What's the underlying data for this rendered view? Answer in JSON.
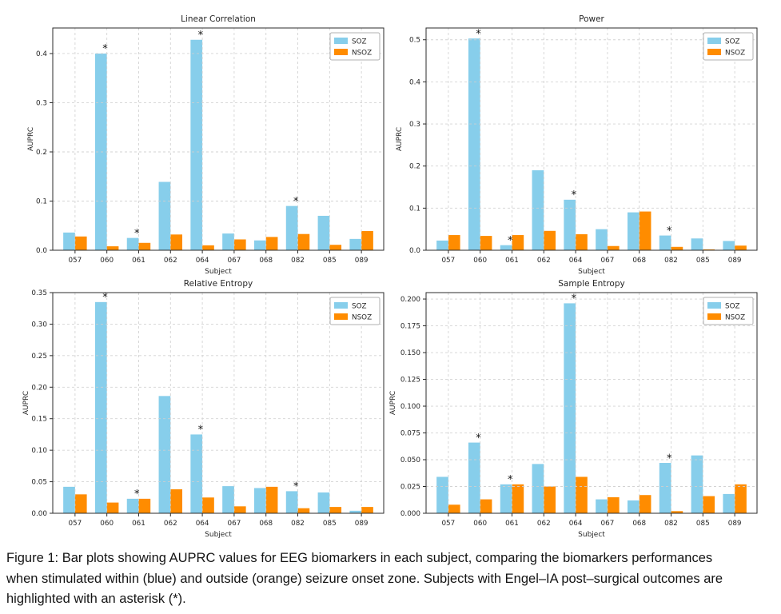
{
  "figure": {
    "caption": "Figure 1: Bar plots showing AUPRC values for EEG biomarkers in each subject, comparing the biomarkers performances when stimulated within (blue) and outside (orange) seizure onset zone. Subjects with Engel–IA post–surgical outcomes are highlighted with an asterisk (*)."
  },
  "colors": {
    "soz": "#87CEEB",
    "nsoz": "#FF8C00",
    "grid": "#cfcfcf",
    "spine": "#2b2b2b",
    "text": "#262626",
    "legend_border": "#b0b0b0",
    "background": "#ffffff"
  },
  "chart_data": [
    {
      "type": "bar",
      "title": "Linear Correlation",
      "xlabel": "Subject",
      "ylabel": "AUPRC",
      "categories": [
        "057",
        "060",
        "061",
        "062",
        "064",
        "067",
        "068",
        "082",
        "085",
        "089"
      ],
      "series": [
        {
          "name": "SOZ",
          "values": [
            0.036,
            0.4,
            0.025,
            0.139,
            0.428,
            0.034,
            0.02,
            0.09,
            0.07,
            0.023
          ]
        },
        {
          "name": "NSOZ",
          "values": [
            0.028,
            0.008,
            0.015,
            0.032,
            0.01,
            0.022,
            0.027,
            0.033,
            0.011,
            0.039
          ]
        }
      ],
      "asterisk_subjects": [
        "060",
        "061",
        "064",
        "082"
      ],
      "ylim": [
        0,
        0.452
      ],
      "yticks": [
        0.0,
        0.1,
        0.2,
        0.3,
        0.4
      ],
      "ytick_decimals": 1,
      "grid": true,
      "legend_position": "upper right",
      "legend": [
        "SOZ",
        "NSOZ"
      ]
    },
    {
      "type": "bar",
      "title": "Power",
      "xlabel": "Subject",
      "ylabel": "AUPRC",
      "categories": [
        "057",
        "060",
        "061",
        "062",
        "064",
        "067",
        "068",
        "082",
        "085",
        "089"
      ],
      "series": [
        {
          "name": "SOZ",
          "values": [
            0.023,
            0.503,
            0.012,
            0.19,
            0.12,
            0.05,
            0.09,
            0.035,
            0.028,
            0.022
          ]
        },
        {
          "name": "NSOZ",
          "values": [
            0.036,
            0.034,
            0.036,
            0.046,
            0.038,
            0.01,
            0.092,
            0.008,
            0.002,
            0.011
          ]
        }
      ],
      "asterisk_subjects": [
        "060",
        "061",
        "064",
        "082"
      ],
      "ylim": [
        0,
        0.528
      ],
      "yticks": [
        0.0,
        0.1,
        0.2,
        0.3,
        0.4,
        0.5
      ],
      "ytick_decimals": 1,
      "grid": true,
      "legend_position": "upper right",
      "legend": [
        "SOZ",
        "NSOZ"
      ]
    },
    {
      "type": "bar",
      "title": "Relative Entropy",
      "xlabel": "Subject",
      "ylabel": "AUPRC",
      "categories": [
        "057",
        "060",
        "061",
        "062",
        "064",
        "067",
        "068",
        "082",
        "085",
        "089"
      ],
      "series": [
        {
          "name": "SOZ",
          "values": [
            0.042,
            0.335,
            0.023,
            0.186,
            0.125,
            0.043,
            0.04,
            0.035,
            0.033,
            0.004
          ]
        },
        {
          "name": "NSOZ",
          "values": [
            0.03,
            0.017,
            0.023,
            0.038,
            0.025,
            0.011,
            0.042,
            0.008,
            0.01,
            0.01
          ]
        }
      ],
      "asterisk_subjects": [
        "060",
        "061",
        "064",
        "082"
      ],
      "ylim": [
        0,
        0.35
      ],
      "yticks": [
        0.0,
        0.05,
        0.1,
        0.15,
        0.2,
        0.25,
        0.3,
        0.35
      ],
      "ytick_decimals": 2,
      "grid": true,
      "legend_position": "upper right",
      "legend": [
        "SOZ",
        "NSOZ"
      ]
    },
    {
      "type": "bar",
      "title": "Sample Entropy",
      "xlabel": "Subject",
      "ylabel": "AUPRC",
      "categories": [
        "057",
        "060",
        "061",
        "062",
        "064",
        "067",
        "068",
        "082",
        "085",
        "089"
      ],
      "series": [
        {
          "name": "SOZ",
          "values": [
            0.034,
            0.066,
            0.027,
            0.046,
            0.196,
            0.013,
            0.012,
            0.047,
            0.054,
            0.018
          ]
        },
        {
          "name": "NSOZ",
          "values": [
            0.008,
            0.013,
            0.027,
            0.025,
            0.034,
            0.015,
            0.017,
            0.002,
            0.016,
            0.027
          ]
        }
      ],
      "asterisk_subjects": [
        "060",
        "061",
        "064",
        "082"
      ],
      "ylim": [
        0,
        0.206
      ],
      "yticks": [
        0.0,
        0.025,
        0.05,
        0.075,
        0.1,
        0.125,
        0.15,
        0.175,
        0.2
      ],
      "ytick_decimals": 3,
      "grid": true,
      "legend_position": "upper right",
      "legend": [
        "SOZ",
        "NSOZ"
      ]
    }
  ]
}
